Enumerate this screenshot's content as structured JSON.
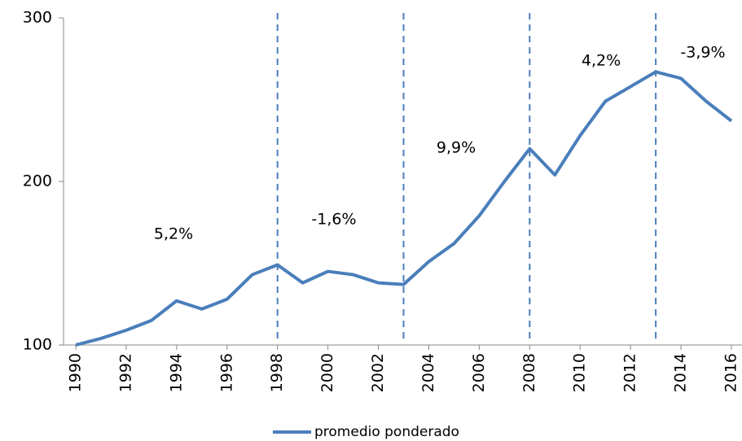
{
  "chart_data": {
    "type": "line",
    "x": [
      1990,
      1991,
      1992,
      1993,
      1994,
      1995,
      1996,
      1997,
      1998,
      1999,
      2000,
      2001,
      2002,
      2003,
      2004,
      2005,
      2006,
      2007,
      2008,
      2009,
      2010,
      2011,
      2012,
      2013,
      2014,
      2015,
      2016
    ],
    "series": [
      {
        "name": "promedio ponderado",
        "color": "#4a7ebb",
        "values": [
          100,
          104,
          109,
          115,
          127,
          122,
          128,
          143,
          149,
          138,
          145,
          143,
          138,
          137,
          151,
          162,
          179,
          200,
          220,
          204,
          228,
          249,
          258,
          267,
          263,
          249,
          237
        ]
      }
    ],
    "xlim": [
      1990,
      2016
    ],
    "xticks": [
      1990,
      1992,
      1994,
      1996,
      1998,
      2000,
      2002,
      2004,
      2006,
      2008,
      2010,
      2012,
      2014,
      2016
    ],
    "ylim": [
      100,
      300
    ],
    "yticks": [
      100,
      200,
      300
    ],
    "dividers": [
      1998,
      2003,
      2008,
      2013
    ],
    "annotations": [
      "5,2%",
      "-1,6%",
      "9,9%",
      "4,2%",
      "-3,9%"
    ],
    "legend": "bottom"
  }
}
